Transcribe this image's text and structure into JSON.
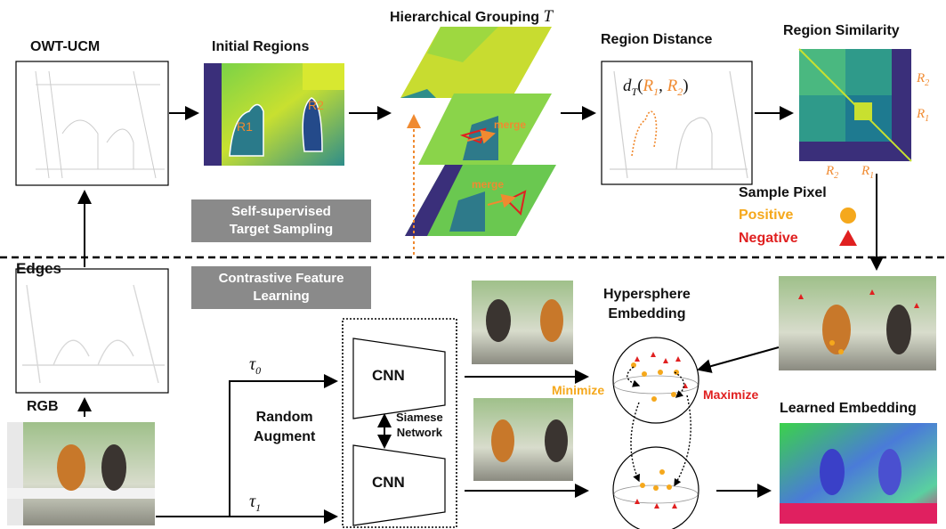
{
  "labels": {
    "owt_ucm": "OWT-UCM",
    "initial_regions": "Initial Regions",
    "hierarchical_grouping": "Hierarchical Grouping",
    "hierarchical_grouping_symbol": "T",
    "region_distance": "Region Distance",
    "region_similarity": "Region Similarity",
    "edges": "Edges",
    "rgb": "RGB",
    "random_augment_line1": "Random",
    "random_augment_line2": "Augment",
    "siamese_line1": "Siamese",
    "siamese_line2": "Network",
    "cnn_top": "CNN",
    "cnn_bottom": "CNN",
    "hypersphere_line1": "Hypersphere",
    "hypersphere_line2": "Embedding",
    "learned_embedding": "Learned Embedding",
    "minimize": "Minimize",
    "maximize": "Maximize",
    "sample_pixel": "Sample Pixel",
    "positive": "Positive",
    "negative": "Negative",
    "merge_1": "merge",
    "merge_2": "merge",
    "region_r1": "R1",
    "region_r2": "R2",
    "tau0": "τ",
    "tau0_sub": "0",
    "tau1": "τ",
    "tau1_sub": "1",
    "distance_formula_d": "d",
    "distance_formula_sub": "T",
    "distance_formula_args_open": "(",
    "distance_formula_r1": "R",
    "distance_formula_r1_sub": "1",
    "distance_formula_comma": ", ",
    "distance_formula_r2": "R",
    "distance_formula_r2_sub": "2",
    "distance_formula_close": ")",
    "matrix_r2_right": "R",
    "matrix_r2_right_sub": "2",
    "matrix_r1_right": "R",
    "matrix_r1_right_sub": "1",
    "matrix_r2_bottom": "R",
    "matrix_r2_bottom_sub": "2",
    "matrix_r1_bottom": "R",
    "matrix_r1_bottom_sub": "1"
  },
  "sections": {
    "self_supervised_line1": "Self-supervised",
    "self_supervised_line2": "Target Sampling",
    "contrastive_line1": "Contrastive Feature",
    "contrastive_line2": "Learning"
  },
  "colors": {
    "positive": "#f5a81c",
    "negative": "#e02020",
    "annotation_orange": "#f08a30",
    "section_gray": "#8a8a8a"
  },
  "icons": {
    "positive_marker": "orange-circle-icon",
    "negative_marker": "red-triangle-icon"
  }
}
